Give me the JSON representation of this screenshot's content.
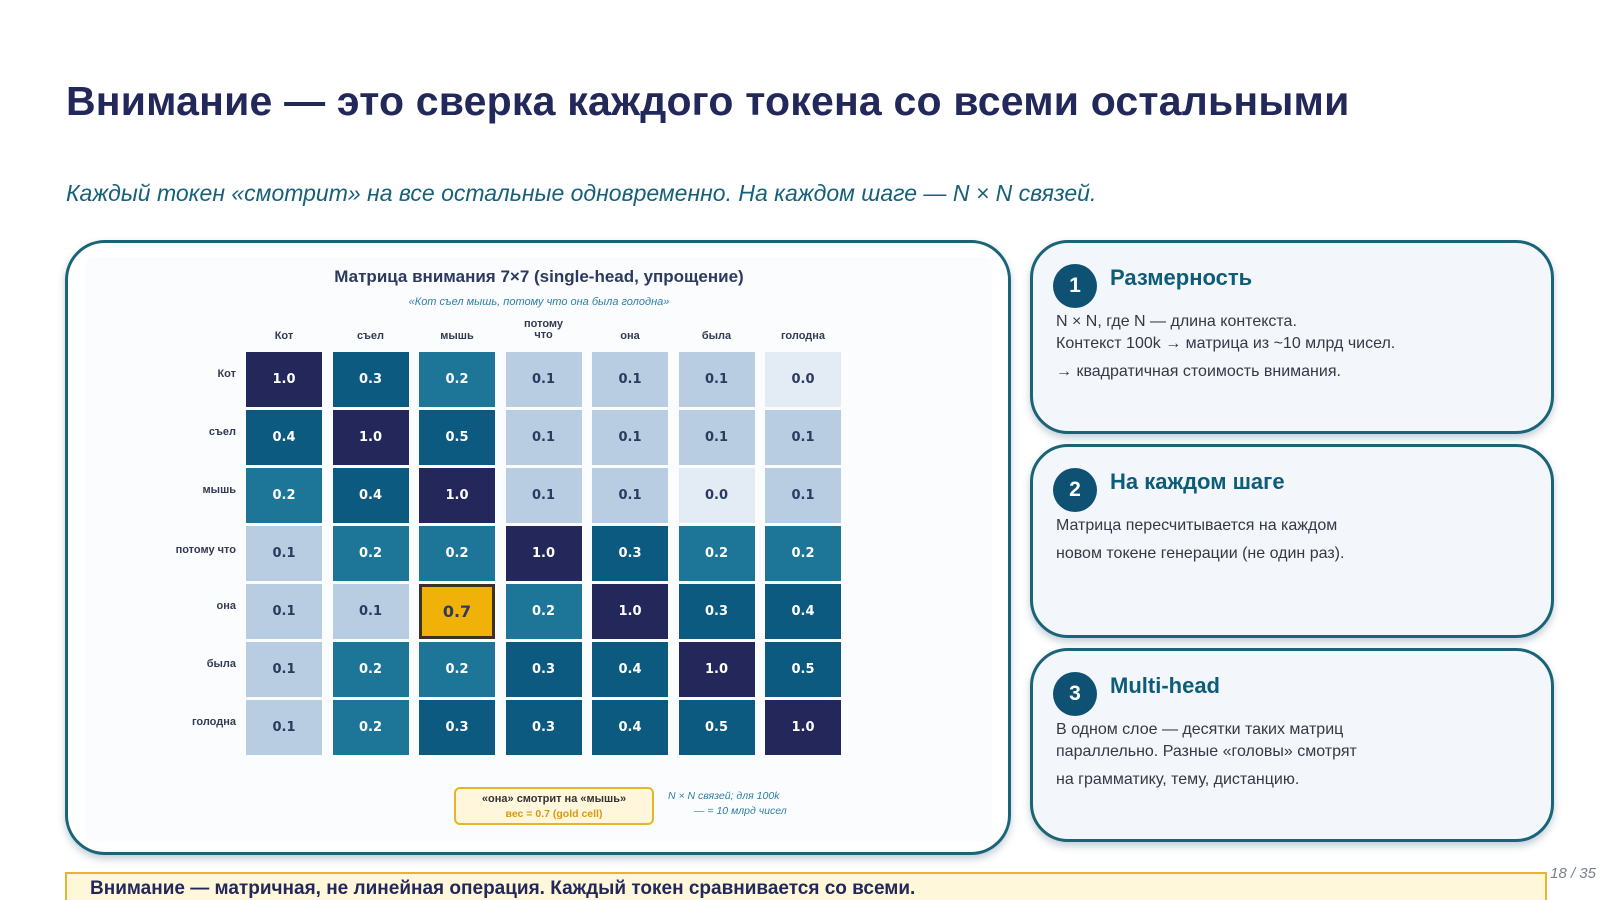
{
  "slide": {
    "title": "Внимание — это сверка каждого токена со всеми остальными",
    "subtitle": "Каждый токен «смотрит» на все остальные одновременно. На каждом шаге — N × N связей.",
    "page_number": "18 / 35",
    "footer": "Внимание — матричная, не линейная операция. Каждый токен сравнивается со всеми."
  },
  "matrix": {
    "title": "Матрица внимания 7×7 (single-head, упрощение)",
    "subtitle": "«Кот съел мышь, потому что она была голодна»",
    "columns": [
      [
        "Кот"
      ],
      [
        "съел"
      ],
      [
        "мышь"
      ],
      [
        "потому",
        "что"
      ],
      [
        "она"
      ],
      [
        "была"
      ],
      [
        "голодна"
      ]
    ],
    "rows": [
      "Кот",
      "съел",
      "мышь",
      "потому что",
      "она",
      "была",
      "голодна"
    ],
    "values": [
      [
        "1.0",
        "0.3",
        "0.2",
        "0.1",
        "0.1",
        "0.1",
        "0.0"
      ],
      [
        "0.4",
        "1.0",
        "0.5",
        "0.1",
        "0.1",
        "0.1",
        "0.1"
      ],
      [
        "0.2",
        "0.4",
        "1.0",
        "0.1",
        "0.1",
        "0.0",
        "0.1"
      ],
      [
        "0.1",
        "0.2",
        "0.2",
        "1.0",
        "0.3",
        "0.2",
        "0.2"
      ],
      [
        "0.1",
        "0.1",
        "0.7",
        "0.2",
        "1.0",
        "0.3",
        "0.4"
      ],
      [
        "0.1",
        "0.2",
        "0.2",
        "0.3",
        "0.4",
        "1.0",
        "0.5"
      ],
      [
        "0.1",
        "0.2",
        "0.3",
        "0.3",
        "0.4",
        "0.5",
        "1.0"
      ]
    ],
    "highlight": {
      "row": 4,
      "col": 2
    },
    "colors": {
      "diag": "#23275a",
      "high": "#0c5a80",
      "mid": "#1d7597",
      "low": "#b8cce2",
      "zero": "#e3ebf4",
      "gold": "#f0b208",
      "dark_text": "#ffffff",
      "light_text": "#2b3a5e"
    },
    "note_box": {
      "line1": "«она» смотрит на «мышь»",
      "line2": "вес = 0.7 (gold cell)"
    },
    "note_side": {
      "line1": "N × N связей; для 100k",
      "line2": "— = 10 млрд чисел"
    }
  },
  "cards": [
    {
      "number": "1",
      "title": "Размерность",
      "lines": [
        "N × N, где N — длина контекста.",
        "Контекст 100k → матрица из ~10 млрд чисел.",
        "→ квадратичная стоимость внимания."
      ]
    },
    {
      "number": "2",
      "title": "На каждом шаге",
      "lines": [
        "Матрица пересчитывается на каждом",
        "новом токене генерации (не один раз)."
      ]
    },
    {
      "number": "3",
      "title": "Multi-head",
      "lines": [
        "В одном слое — десятки таких матриц",
        "параллельно. Разные «головы» смотрят",
        "на грамматику, тему, дистанцию."
      ]
    }
  ]
}
